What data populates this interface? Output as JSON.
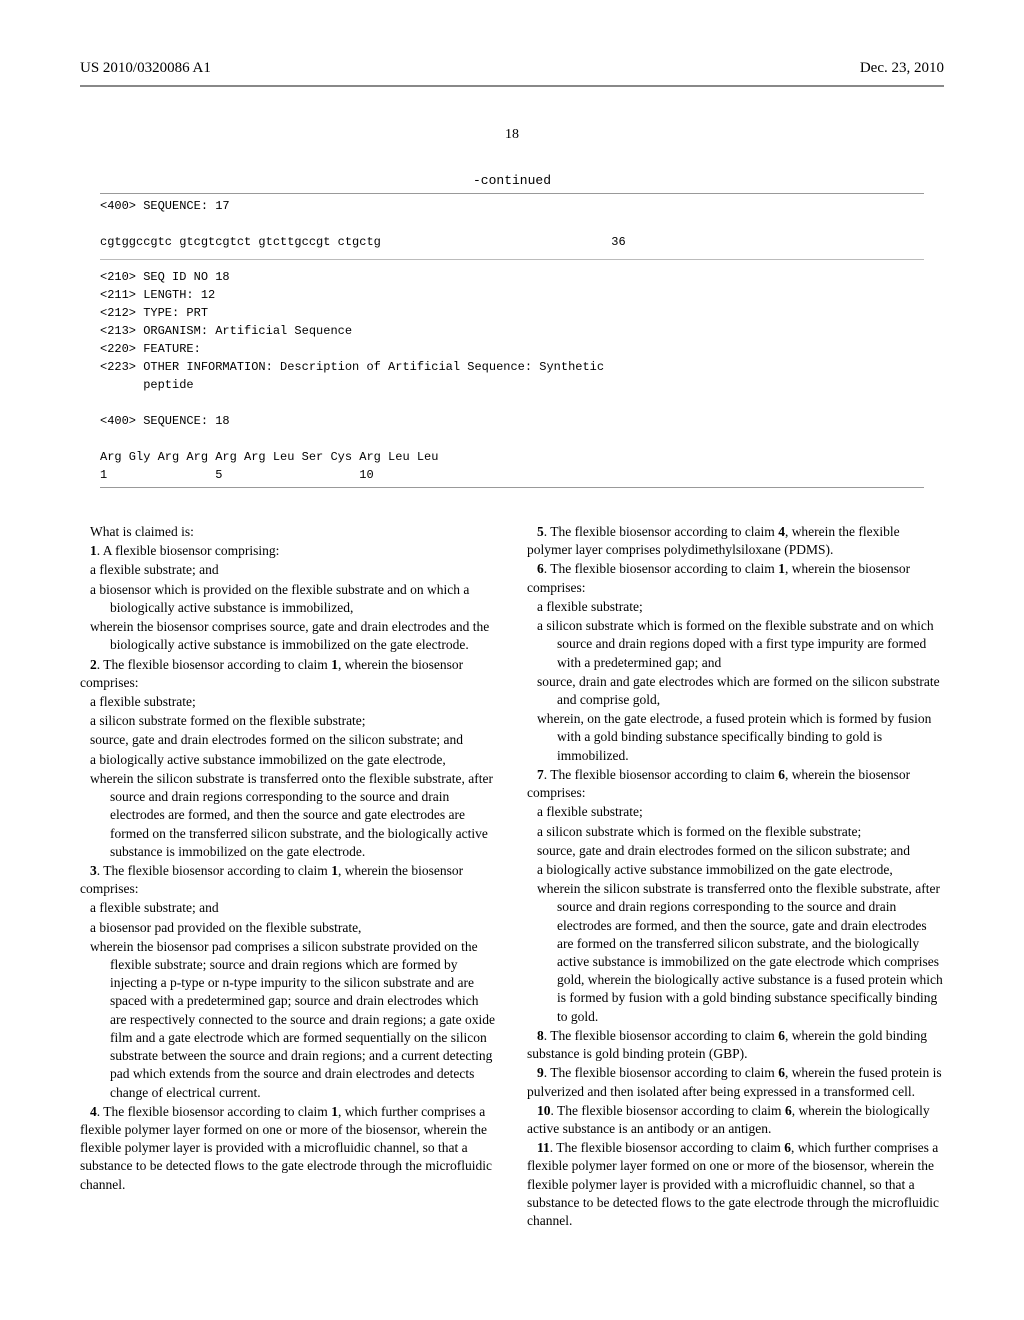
{
  "header": {
    "publication": "US 2010/0320086 A1",
    "date": "Dec. 23, 2010"
  },
  "page_number": "18",
  "continued_label": "-continued",
  "seq1": {
    "line1": "<400> SEQUENCE: 17",
    "line2": "cgtggccgtc gtcgtcgtct gtcttgccgt ctgctg                                36"
  },
  "seq2": {
    "l1": "<210> SEQ ID NO 18",
    "l2": "<211> LENGTH: 12",
    "l3": "<212> TYPE: PRT",
    "l4": "<213> ORGANISM: Artificial Sequence",
    "l5": "<220> FEATURE:",
    "l6": "<223> OTHER INFORMATION: Description of Artificial Sequence: Synthetic",
    "l7": "      peptide",
    "l8": "<400> SEQUENCE: 18",
    "l9": "Arg Gly Arg Arg Arg Arg Leu Ser Cys Arg Leu Leu",
    "l10": "1               5                   10"
  },
  "claims_intro": "What is claimed is:",
  "left": {
    "c1a": "1",
    "c1b": ". A flexible biosensor comprising:",
    "c1_l1": "a flexible substrate; and",
    "c1_l2": "a biosensor which is provided on the flexible substrate and on which a biologically active substance is immobilized,",
    "c1_l3": "wherein the biosensor comprises source, gate and drain electrodes and the biologically active substance is immobilized on the gate electrode.",
    "c2a": "2",
    "c2b": ". The flexible biosensor according to claim ",
    "c2c": "1",
    "c2d": ", wherein the biosensor comprises:",
    "c2_l1": "a flexible substrate;",
    "c2_l2": "a silicon substrate formed on the flexible substrate;",
    "c2_l3": "source, gate and drain electrodes formed on the silicon substrate; and",
    "c2_l4": "a biologically active substance immobilized on the gate electrode,",
    "c2_l5": "wherein the silicon substrate is transferred onto the flexible substrate, after source and drain regions corresponding to the source and drain electrodes are formed, and then the source and gate electrodes are formed on the transferred silicon substrate, and the biologically active substance is immobilized on the gate electrode.",
    "c3a": "3",
    "c3b": ". The flexible biosensor according to claim ",
    "c3c": "1",
    "c3d": ", wherein the biosensor comprises:",
    "c3_l1": "a flexible substrate; and",
    "c3_l2": "a biosensor pad provided on the flexible substrate,",
    "c3_l3": "wherein the biosensor pad comprises a silicon substrate provided on the flexible substrate; source and drain regions which are formed by injecting a p-type or n-type impurity to the silicon substrate and are spaced with a predetermined gap; source and drain electrodes which are respectively connected to the source and drain regions; a gate oxide film and a gate electrode which are formed sequentially on the silicon substrate between the source and drain regions; and a current detecting pad which extends from the source and drain electrodes and detects change of electrical current.",
    "c4a": "4",
    "c4b": ". The flexible biosensor according to claim ",
    "c4c": "1",
    "c4d": ", which further comprises a flexible polymer layer formed on one or more of the biosensor, wherein the flexible polymer layer is provided with a microfluidic channel, so that a substance to be detected flows to the gate electrode through the microfluidic channel."
  },
  "right": {
    "c5a": "5",
    "c5b": ". The flexible biosensor according to claim ",
    "c5c": "4",
    "c5d": ", wherein the flexible polymer layer comprises polydimethylsiloxane (PDMS).",
    "c6a": "6",
    "c6b": ". The flexible biosensor according to claim ",
    "c6c": "1",
    "c6d": ", wherein the biosensor comprises:",
    "c6_l1": "a flexible substrate;",
    "c6_l2": "a silicon substrate which is formed on the flexible substrate and on which source and drain regions doped with a first type impurity are formed with a predetermined gap; and",
    "c6_l3": "source, drain and gate electrodes which are formed on the silicon substrate and comprise gold,",
    "c6_l4": "wherein, on the gate electrode, a fused protein which is formed by fusion with a gold binding substance specifically binding to gold is immobilized.",
    "c7a": "7",
    "c7b": ". The flexible biosensor according to claim ",
    "c7c": "6",
    "c7d": ", wherein the biosensor comprises:",
    "c7_l1": "a flexible substrate;",
    "c7_l2": "a silicon substrate which is formed on the flexible substrate;",
    "c7_l3": "source, gate and drain electrodes formed on the silicon substrate; and",
    "c7_l4": "a biologically active substance immobilized on the gate electrode,",
    "c7_l5": "wherein the silicon substrate is transferred onto the flexible substrate, after source and drain regions corresponding to the source and drain electrodes are formed, and then the source, gate and drain electrodes are formed on the transferred silicon substrate, and the biologically active substance is immobilized on the gate electrode which comprises gold, wherein the biologically active substance is a fused protein which is formed by fusion with a gold binding substance specifically binding to gold.",
    "c8a": "8",
    "c8b": ". The flexible biosensor according to claim ",
    "c8c": "6",
    "c8d": ", wherein the gold binding substance is gold binding protein (GBP).",
    "c9a": "9",
    "c9b": ". The flexible biosensor according to claim ",
    "c9c": "6",
    "c9d": ", wherein the fused protein is pulverized and then isolated after being expressed in a transformed cell.",
    "c10a": "10",
    "c10b": ". The flexible biosensor according to claim ",
    "c10c": "6",
    "c10d": ", wherein the biologically active substance is an antibody or an antigen.",
    "c11a": "11",
    "c11b": ". The flexible biosensor according to claim ",
    "c11c": "6",
    "c11d": ", which further comprises a flexible polymer layer formed on one or more of the biosensor, wherein the flexible polymer layer is provided with a microfluidic channel, so that a substance to be detected flows to the gate electrode through the microfluidic channel."
  }
}
